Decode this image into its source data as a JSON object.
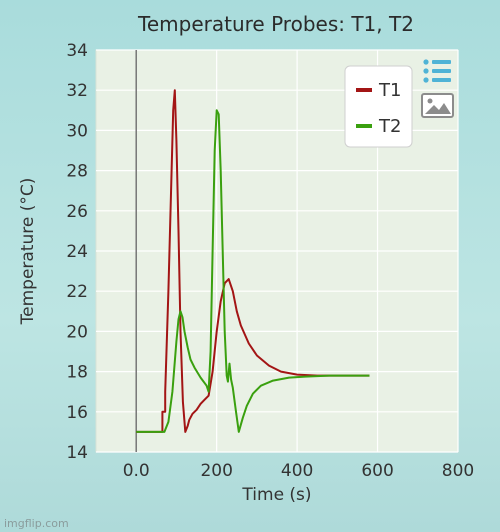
{
  "chart_data": {
    "type": "line",
    "title": "Temperature Probes: T1, T2",
    "xlabel": "Time (s)",
    "ylabel": "Temperature (°C)",
    "xlim": [
      -100,
      800
    ],
    "ylim": [
      14,
      34
    ],
    "xticks": [
      0,
      200,
      400,
      600,
      800
    ],
    "xtick_labels": [
      "0.0",
      "200",
      "400",
      "600",
      "800"
    ],
    "yticks": [
      14,
      16,
      18,
      20,
      22,
      24,
      26,
      28,
      30,
      32,
      34
    ],
    "grid": true,
    "legend_position": "top-right",
    "series": [
      {
        "name": "T1",
        "color": "#a31515",
        "x": [
          0,
          60,
          65,
          65,
          72,
          72,
          80,
          88,
          92,
          96,
          100,
          105,
          110,
          116,
          122,
          128,
          132,
          140,
          150,
          160,
          170,
          180,
          190,
          200,
          210,
          220,
          230,
          240,
          250,
          260,
          280,
          300,
          330,
          360,
          400,
          450,
          500,
          580
        ],
        "y": [
          15,
          15,
          15,
          16,
          16,
          17,
          22,
          28,
          31,
          32,
          29.5,
          25,
          20,
          16.5,
          15,
          15.3,
          15.6,
          15.9,
          16.1,
          16.4,
          16.6,
          16.8,
          18,
          20,
          21.5,
          22.4,
          22.6,
          22,
          21,
          20.3,
          19.4,
          18.8,
          18.3,
          18,
          17.85,
          17.8,
          17.8,
          17.8
        ]
      },
      {
        "name": "T2",
        "color": "#3aa00f",
        "x": [
          0,
          70,
          80,
          90,
          100,
          105,
          110,
          115,
          120,
          128,
          135,
          145,
          160,
          175,
          180,
          185,
          190,
          195,
          200,
          205,
          210,
          215,
          220,
          225,
          228,
          232,
          236,
          240,
          248,
          255,
          265,
          275,
          290,
          310,
          340,
          380,
          420,
          480,
          580
        ],
        "y": [
          15,
          15,
          15.5,
          17,
          19.5,
          20.6,
          21,
          20.7,
          20,
          19.2,
          18.6,
          18.2,
          17.7,
          17.3,
          17,
          19,
          24,
          29,
          31,
          30.8,
          28,
          24,
          20,
          17.8,
          17.5,
          18.4,
          17.6,
          17.2,
          16,
          15,
          15.7,
          16.3,
          16.9,
          17.3,
          17.55,
          17.7,
          17.75,
          17.8,
          17.8
        ]
      }
    ]
  },
  "toolbar": {
    "legend_icon": "list-icon",
    "image_icon": "image-icon"
  },
  "watermark": "imgflip.com"
}
